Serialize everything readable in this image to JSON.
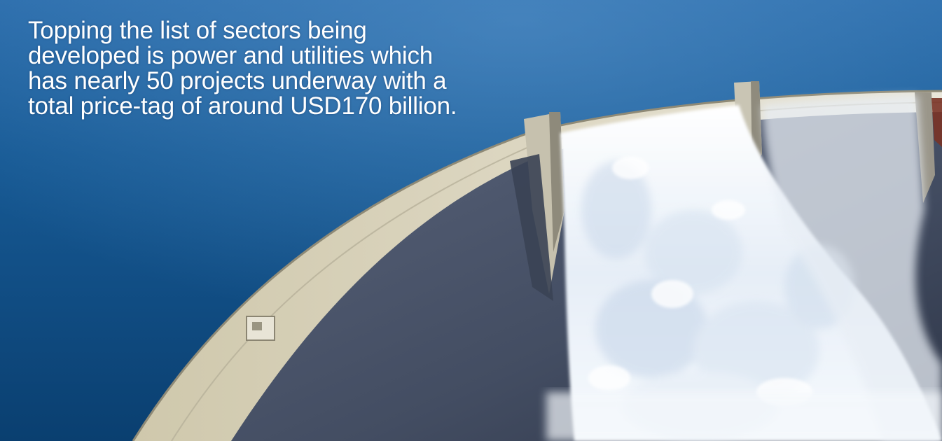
{
  "caption": {
    "text": "Topping the list of sectors being\ndeveloped is power and utilities which\nhas nearly 50 projects underway with a\ntotal price-tag of around USD170 billion."
  },
  "colors": {
    "sky_top": "#1f5d9c",
    "sea_dark": "#0d4a7e",
    "dam_crest": "#d8d2bb",
    "dam_face": "#4a5468",
    "spillway_water": "#eef4fb"
  }
}
